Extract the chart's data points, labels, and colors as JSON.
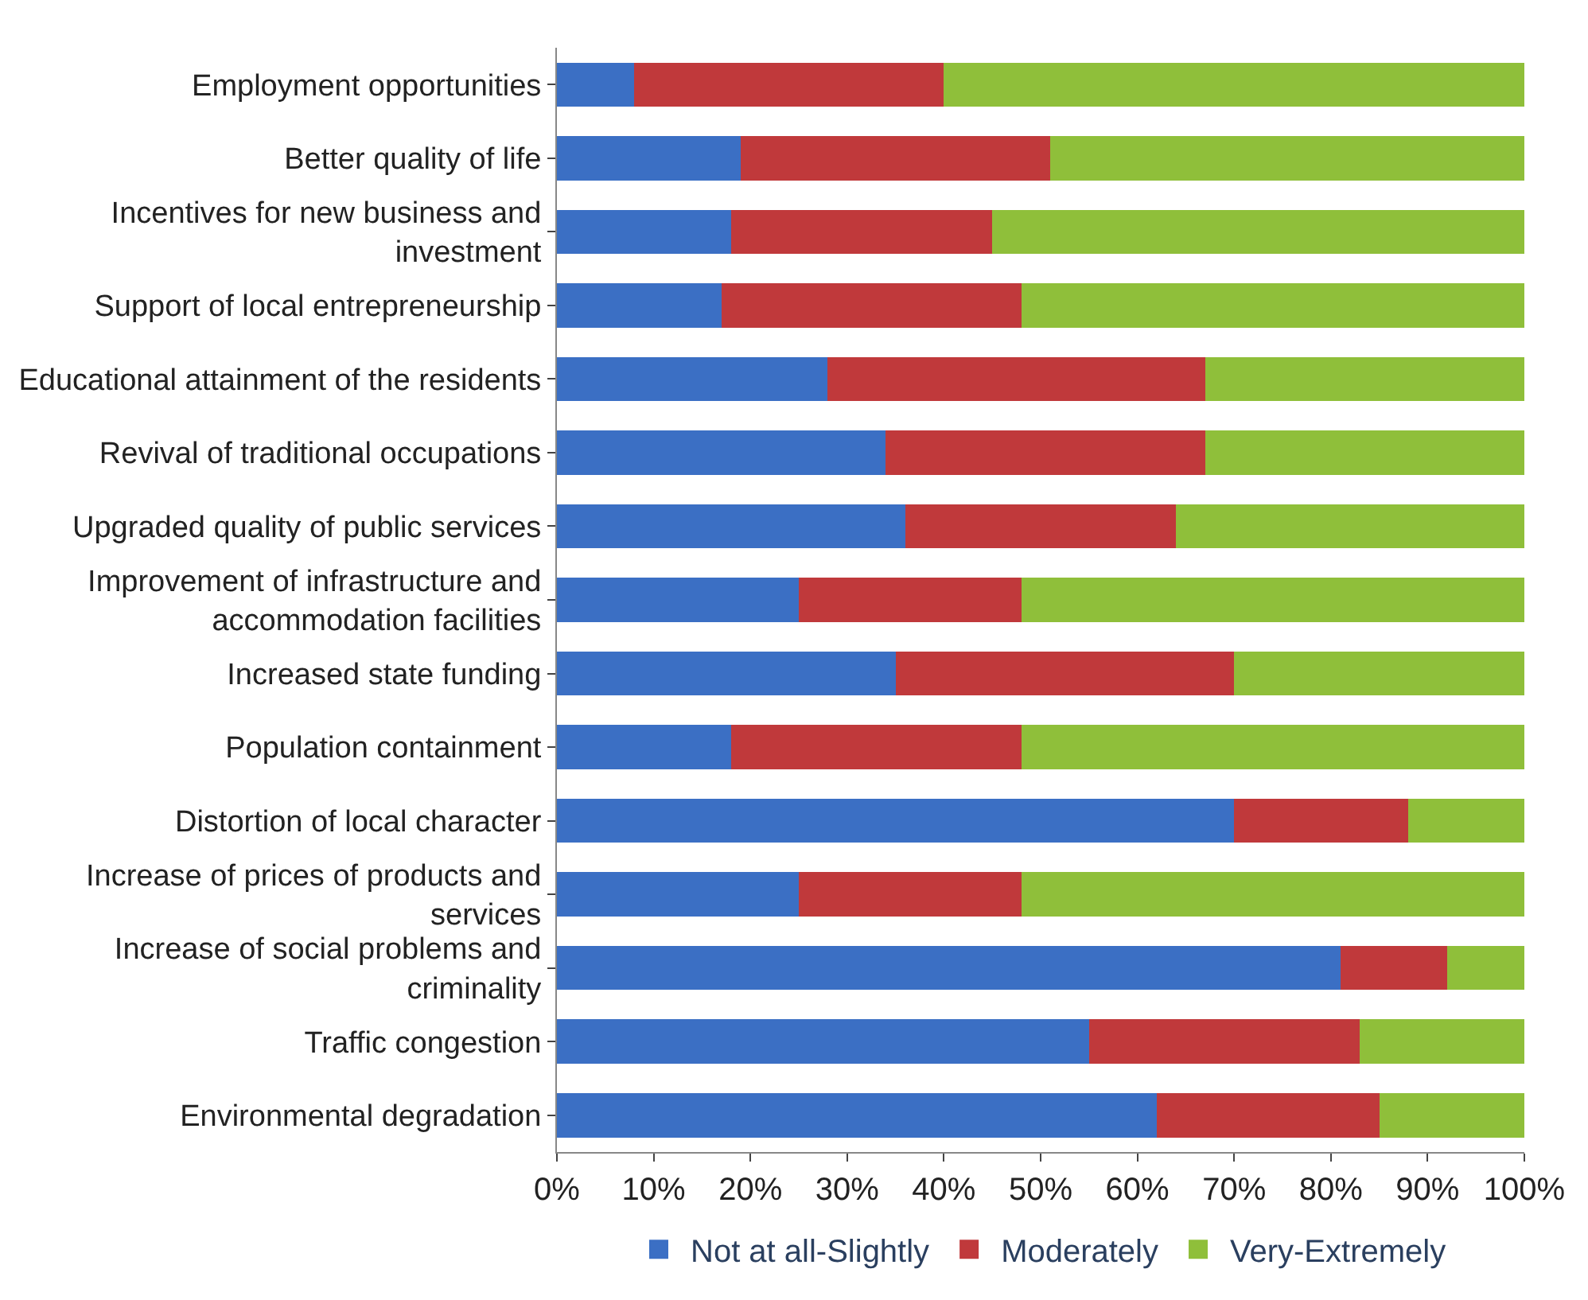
{
  "chart_data": {
    "type": "bar",
    "orientation": "horizontal",
    "stacked": true,
    "categories": [
      "Employment opportunities",
      "Better quality of life",
      "Incentives for new business and\ninvestment",
      "Support of local entrepreneurship",
      "Educational attainment of the residents",
      "Revival of traditional occupations",
      "Upgraded quality of public services",
      "Improvement of infrastructure and\naccommodation facilities",
      "Increased state funding",
      "Population containment",
      "Distortion of local character",
      "Increase of prices of products and\nservices",
      "Increase of social problems and\ncriminality",
      "Traffic congestion",
      "Environmental degradation"
    ],
    "series": [
      {
        "name": "Not at all-Slightly",
        "color": "#3b6fc4",
        "values": [
          8,
          19,
          18,
          17,
          28,
          34,
          36,
          25,
          35,
          18,
          70,
          25,
          81,
          55,
          62
        ]
      },
      {
        "name": "Moderately",
        "color": "#c0393b",
        "values": [
          32,
          32,
          27,
          31,
          39,
          33,
          28,
          23,
          35,
          30,
          18,
          23,
          11,
          28,
          23
        ]
      },
      {
        "name": "Very-Extremely",
        "color": "#8fbf3a",
        "values": [
          60,
          49,
          55,
          52,
          33,
          33,
          36,
          52,
          30,
          52,
          12,
          52,
          8,
          17,
          15
        ]
      }
    ],
    "xlim": [
      0,
      100
    ],
    "xticks": [
      {
        "value": 0,
        "label": "0%"
      },
      {
        "value": 10,
        "label": "10%"
      },
      {
        "value": 20,
        "label": "20%"
      },
      {
        "value": 30,
        "label": "30%"
      },
      {
        "value": 40,
        "label": "40%"
      },
      {
        "value": 50,
        "label": "50%"
      },
      {
        "value": 60,
        "label": "60%"
      },
      {
        "value": 70,
        "label": "70%"
      },
      {
        "value": 80,
        "label": "80%"
      },
      {
        "value": 90,
        "label": "90%"
      },
      {
        "value": 100,
        "label": "100%"
      }
    ],
    "legend": "bottom"
  }
}
